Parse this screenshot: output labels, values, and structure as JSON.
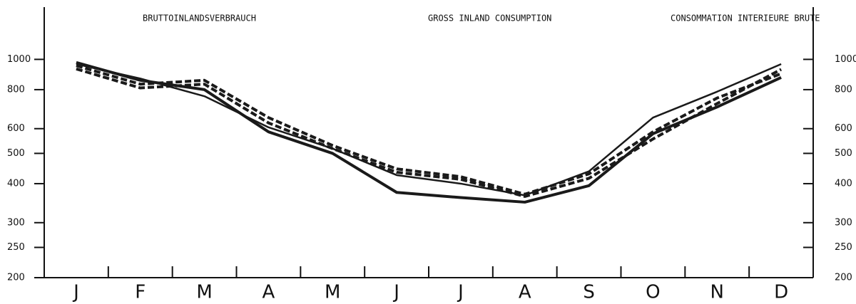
{
  "chart_data": {
    "type": "line",
    "titles": [
      "BRUTTOINLANDSVERBRAUCH",
      "GROSS INLAND CONSUMPTION",
      "CONSOMMATION INTERIEURE BRUTE"
    ],
    "categories": [
      "J",
      "F",
      "M",
      "A",
      "M",
      "J",
      "J",
      "A",
      "S",
      "O",
      "N",
      "D"
    ],
    "series": [
      {
        "color": "#1a1a1a",
        "width": 4,
        "dashed": false,
        "values": [
          977,
          857,
          800,
          586,
          500,
          375,
          361,
          349,
          394,
          578,
          704,
          875
        ]
      },
      {
        "color": "#1a1a1a",
        "width": 2.5,
        "dashed": false,
        "values": [
          966,
          868,
          762,
          606,
          518,
          426,
          400,
          367,
          438,
          651,
          788,
          966
        ]
      },
      {
        "color": "#1a1a1a",
        "width": 4,
        "dashed": true,
        "values": [
          955,
          833,
          857,
          651,
          530,
          446,
          421,
          370,
          430,
          586,
          752,
          900
        ]
      },
      {
        "color": "#1a1a1a",
        "width": 4,
        "dashed": true,
        "values": [
          932,
          810,
          833,
          626,
          518,
          435,
          413,
          364,
          416,
          556,
          722,
          929
        ]
      }
    ],
    "log_y": true,
    "ylim": [
      200,
      1470
    ],
    "yticks": [
      200,
      250,
      300,
      400,
      500,
      600,
      800,
      1000
    ]
  }
}
